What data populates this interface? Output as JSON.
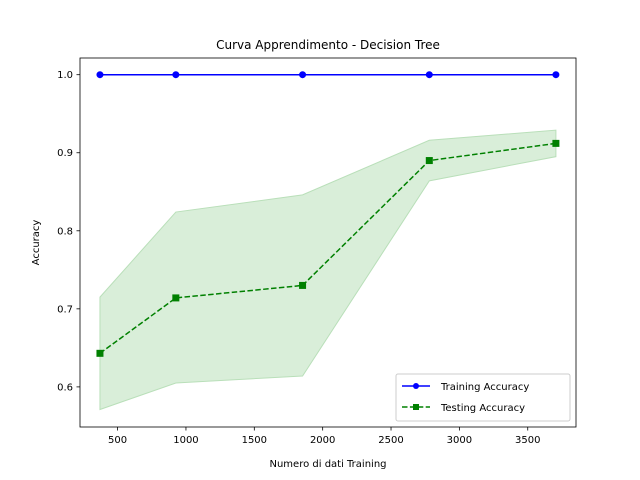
{
  "chart_data": {
    "type": "line",
    "title": "Curva Apprendimento - Decision Tree",
    "xlabel": "Numero di dati Training",
    "ylabel": "Accuracy",
    "x": [
      371,
      926,
      1853,
      2780,
      3706
    ],
    "xlim": [
      225,
      3853
    ],
    "ylim": [
      0.5486,
      1.0214
    ],
    "xticks": [
      500,
      1000,
      1500,
      2000,
      2500,
      3000,
      3500
    ],
    "xtick_labels": [
      "500",
      "1000",
      "1500",
      "2000",
      "2500",
      "3000",
      "3500"
    ],
    "yticks": [
      0.6,
      0.7,
      0.8,
      0.9,
      1.0
    ],
    "ytick_labels": [
      "0.6",
      "0.7",
      "0.8",
      "0.9",
      "1.0"
    ],
    "grid": false,
    "legend_position": "lower-right",
    "series": [
      {
        "name": "Training Accuracy",
        "values": [
          1.0,
          1.0,
          1.0,
          1.0,
          1.0
        ],
        "color": "#0000ff",
        "line_style": "solid",
        "marker": "circle",
        "band_lower": [
          1.0,
          1.0,
          1.0,
          1.0,
          1.0
        ],
        "band_upper": [
          1.0,
          1.0,
          1.0,
          1.0,
          1.0
        ]
      },
      {
        "name": "Testing Accuracy",
        "values": [
          0.643,
          0.714,
          0.73,
          0.89,
          0.912
        ],
        "color": "#008000",
        "line_style": "dashed",
        "marker": "square",
        "band_lower": [
          0.571,
          0.605,
          0.614,
          0.864,
          0.895
        ],
        "band_upper": [
          0.715,
          0.824,
          0.846,
          0.916,
          0.929
        ],
        "band_color": "#d9eed9"
      }
    ]
  }
}
